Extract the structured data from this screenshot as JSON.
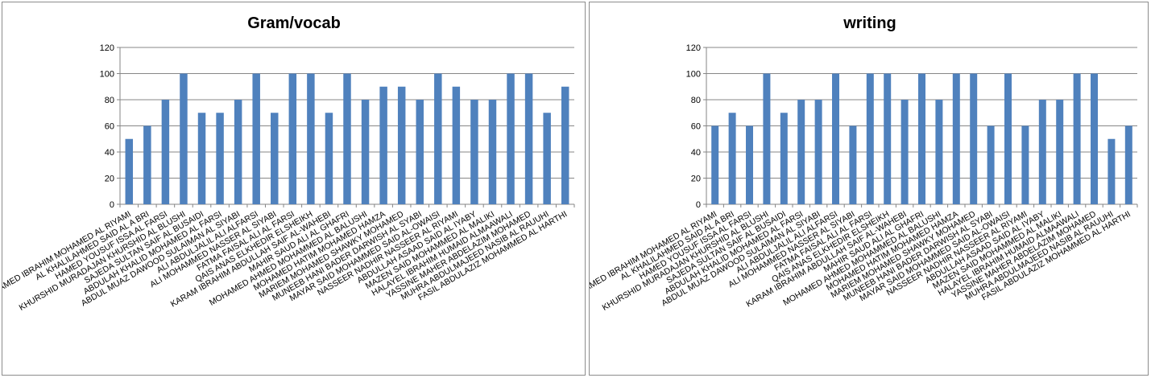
{
  "chart_data": [
    {
      "type": "bar",
      "title": "Gram/vocab",
      "xlabel": "",
      "ylabel": "",
      "ylim": [
        0,
        120
      ],
      "yticks": [
        0,
        20,
        40,
        60,
        80,
        100,
        120
      ],
      "grid": true,
      "legend": "none",
      "bar_color": "#4f81bd",
      "categories": [
        "AMED IBRAHIM MOHAMED AL RIYAMI",
        "AL KHALILAHMED SAID AL A BRI",
        "HAMED YOUSUF ISSA AL FARSI",
        "KHURSHID MURADAJAN KHURSHID AL BLUSHI",
        "SAJEDA SULTAN SAIF AL BUSAIDI",
        "ABDULAH KHALID MOHAMED AL FARSI",
        "ABDUL MUAZ  DAWOOD SULAIMAN AL SIYABI",
        "ALI ABDULJALIL ALI ALFARSI",
        "ALI MOHAMMED NASSER AL SIYABI",
        "FATMA FAISAL ALI AL FARSI",
        "QAIS ANAS ELKHEDIR ELSHEIKH",
        "KARAM IBRAHIM ABDULLAH SAIF AL-WAHEBI",
        "MAHIR SAUD ALI AL GHAFRI",
        "MOHAMED AHMED MOHAMMED AL BALUSHI",
        "MOHAMED HATIM MOHAMED HAMZA",
        "MARIEM MOHAMED SHAWKY MOHAMED",
        "MUNEEB HANI BADER DARWISH AL SYABI",
        "MAYAR SAID MOHAMMED SAID AL-OWAISI",
        "NASSEER NADHIR NASSEER AL RIYAMI",
        "ABDULLAH ASAAD SAID AL IYABY",
        "MAZEN SAID MOHAMMED AL MALIKI",
        "HALAYEL IBRAHIM HUMAID ALMAAWALI",
        "YASSINE MAHER ABDELAZIM MOHAMED",
        "MUHRA ABDULMAJEED NASIB AL RAUUHI",
        "FASIL ABDULAZIZ MOHAMMED AL HARTHI"
      ],
      "values": [
        50,
        60,
        80,
        100,
        70,
        70,
        80,
        100,
        70,
        100,
        100,
        70,
        100,
        80,
        90,
        90,
        80,
        100,
        90,
        80,
        80,
        100,
        100,
        70,
        90
      ]
    },
    {
      "type": "bar",
      "title": "writing",
      "xlabel": "",
      "ylabel": "",
      "ylim": [
        0,
        120
      ],
      "yticks": [
        0,
        20,
        40,
        60,
        80,
        100,
        120
      ],
      "grid": true,
      "legend": "none",
      "bar_color": "#4f81bd",
      "categories": [
        "AMED IBRAHIM MOHAMED AL RIYAMI",
        "AL KHALILAHMED SAID AL A BRI",
        "HAMED YOUSUF ISSA AL FARSI",
        "KHURSHID MURADAJAN KHURSHID AL BLUSHI",
        "SAJEDA SULTAN SAIF AL BUSAIDI",
        "ABDULAH KHALID MOHAMED AL FARSI",
        "ABDUL MUAZ  DAWOOD SULAIMAN AL SIYABI",
        "ALI ABDULJALIL ALI ALFARSI",
        "ALI MOHAMMED NASSER AL SIYABI",
        "FATMA FAISAL ALI AL FARSI",
        "QAIS ANAS ELKHEDIR ELSHEIKH",
        "KARAM IBRAHIM ABDULLAH SAIF AL-WAHEBI",
        "MAHIR SAUD ALI AL GHAFRI",
        "MOHAMED AHMED MOHAMMED AL BALUSHI",
        "MOHAMED HATIM MOHAMED HAMZA",
        "MARIEM MOHAMED SHAWKY MOHAMED",
        "MUNEEB HANI BADER DARWISH AL SYABI",
        "MAYAR SAID MOHAMMED SAID AL-OWAISI",
        "NASSEER NADHIR NASSEER AL RIYAMI",
        "ABDULLAH ASAAD SAID AL IYABY",
        "MAZEN SAID MOHAMMED AL MALIKI",
        "HALAYEL IBRAHIM HUMAID ALMAAWALI",
        "YASSINE MAHER ABDELAZIM MOHAMED",
        "MUHRA ABDULMAJEED NASIB AL RAUUHI",
        "FASIL ABDULAZIZ MOHAMMED AL HARTHI"
      ],
      "values": [
        60,
        70,
        60,
        100,
        70,
        80,
        80,
        100,
        60,
        100,
        100,
        80,
        100,
        80,
        100,
        100,
        60,
        100,
        60,
        80,
        80,
        100,
        100,
        50,
        60
      ]
    }
  ]
}
